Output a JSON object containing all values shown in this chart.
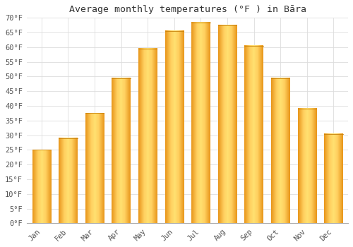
{
  "title": "Average monthly temperatures (°F ) in Bāra",
  "months": [
    "Jan",
    "Feb",
    "Mar",
    "Apr",
    "May",
    "Jun",
    "Jul",
    "Aug",
    "Sep",
    "Oct",
    "Nov",
    "Dec"
  ],
  "values": [
    25,
    29,
    37.5,
    49.5,
    59.5,
    65.5,
    68.5,
    67.5,
    60.5,
    49.5,
    39,
    30.5
  ],
  "bar_color_left": "#F5A623",
  "bar_color_center": "#FFD966",
  "bar_color_right": "#F5A623",
  "ylim": [
    0,
    70
  ],
  "yticks": [
    0,
    5,
    10,
    15,
    20,
    25,
    30,
    35,
    40,
    45,
    50,
    55,
    60,
    65,
    70
  ],
  "background_color": "#ffffff",
  "grid_color": "#dddddd",
  "title_fontsize": 9.5,
  "tick_fontsize": 7.5,
  "tick_color": "#555555"
}
